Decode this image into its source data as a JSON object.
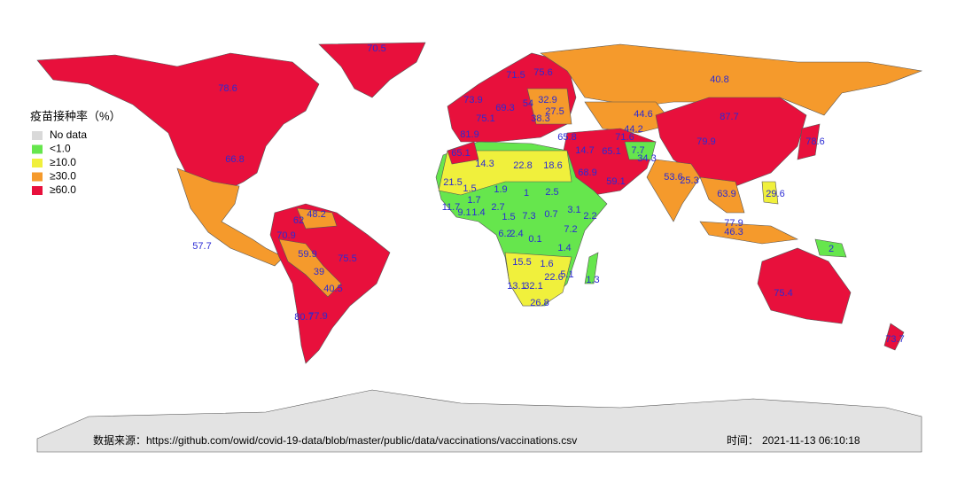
{
  "legend": {
    "title": "疫苗接种率（%）",
    "items": [
      {
        "label": "No data",
        "color": "#d9d9d9"
      },
      {
        "label": "<1.0",
        "color": "#66e64d"
      },
      {
        "label": "≥10.0",
        "color": "#f0f03c"
      },
      {
        "label": "≥30.0",
        "color": "#f59a2c"
      },
      {
        "label": "≥60.0",
        "color": "#e8103c"
      }
    ]
  },
  "labels": [
    70.5,
    78.6,
    66.8,
    57.7,
    40.8,
    44.6,
    87.7,
    79.9,
    78.6,
    73.9,
    75.1,
    81.9,
    65.1,
    69.3,
    54,
    32.9,
    27.5,
    38.3,
    65.8,
    14.7,
    65.1,
    71.6,
    44.2,
    7.7,
    34.3,
    14.3,
    22.8,
    18.6,
    68.9,
    59.1,
    53.6,
    25.3,
    29.6,
    63.9,
    77.9,
    46.3,
    2,
    21.5,
    1.5,
    1.9,
    1,
    2.5,
    11.7,
    9.1,
    1.4,
    1.7,
    2.7,
    1.5,
    7.3,
    0.7,
    3.1,
    2.2,
    7.2,
    6.2,
    2.4,
    0.1,
    1.4,
    15.5,
    1.6,
    22.6,
    5.1,
    1.3,
    13.1,
    32.1,
    26.8,
    75.4,
    73.7,
    62,
    48.2,
    70.9,
    59.9,
    75.5,
    39,
    40.5,
    80.7,
    77.9,
    71.5,
    75.6
  ],
  "footer": {
    "source": "数据来源：https://github.com/owid/covid-19-data/blob/master/public/data/vaccinations/vaccinations.csv",
    "time_label": "时间：",
    "time": "2021-11-13 06:10:18"
  }
}
